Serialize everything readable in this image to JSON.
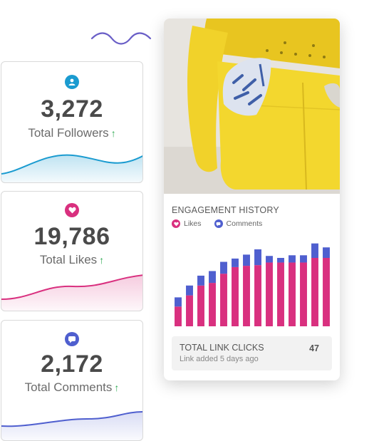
{
  "colors": {
    "followers": "#1a9bd0",
    "likes": "#d9307f",
    "comments": "#4f5fcf",
    "up_arrow": "#2eaa52",
    "sofa": "#f1d22a"
  },
  "stats": [
    {
      "id": "followers",
      "icon": "user-icon",
      "value": "3,272",
      "label": "Total Followers",
      "arrow": "↑"
    },
    {
      "id": "likes",
      "icon": "heart-icon",
      "value": "19,786",
      "label": "Total Likes",
      "arrow": "↑"
    },
    {
      "id": "comments",
      "icon": "comment-icon",
      "value": "2,172",
      "label": "Total Comments",
      "arrow": "↑"
    }
  ],
  "engagement": {
    "title": "ENGAGEMENT HISTORY",
    "legend": [
      {
        "name": "Likes",
        "icon": "heart-icon",
        "color": "#d9307f"
      },
      {
        "name": "Comments",
        "icon": "comment-icon",
        "color": "#4f5fcf"
      }
    ]
  },
  "chart_data": {
    "type": "bar",
    "stacked": true,
    "title": "ENGAGEMENT HISTORY",
    "legend_placement": "top-left",
    "grid": false,
    "ylim": [
      0,
      130
    ],
    "series": [
      {
        "name": "Likes",
        "color": "#d9307f",
        "values": [
          30,
          47,
          62,
          66,
          80,
          90,
          92,
          93,
          97,
          97,
          97,
          97,
          104,
          104
        ]
      },
      {
        "name": "Comments",
        "color": "#4f5fcf",
        "values": [
          14,
          15,
          15,
          18,
          18,
          13,
          17,
          24,
          10,
          7,
          11,
          11,
          22,
          16
        ]
      }
    ]
  },
  "link_clicks": {
    "title": "TOTAL LINK CLICKS",
    "subtitle": "Link added 5 days ago",
    "count": "47"
  }
}
